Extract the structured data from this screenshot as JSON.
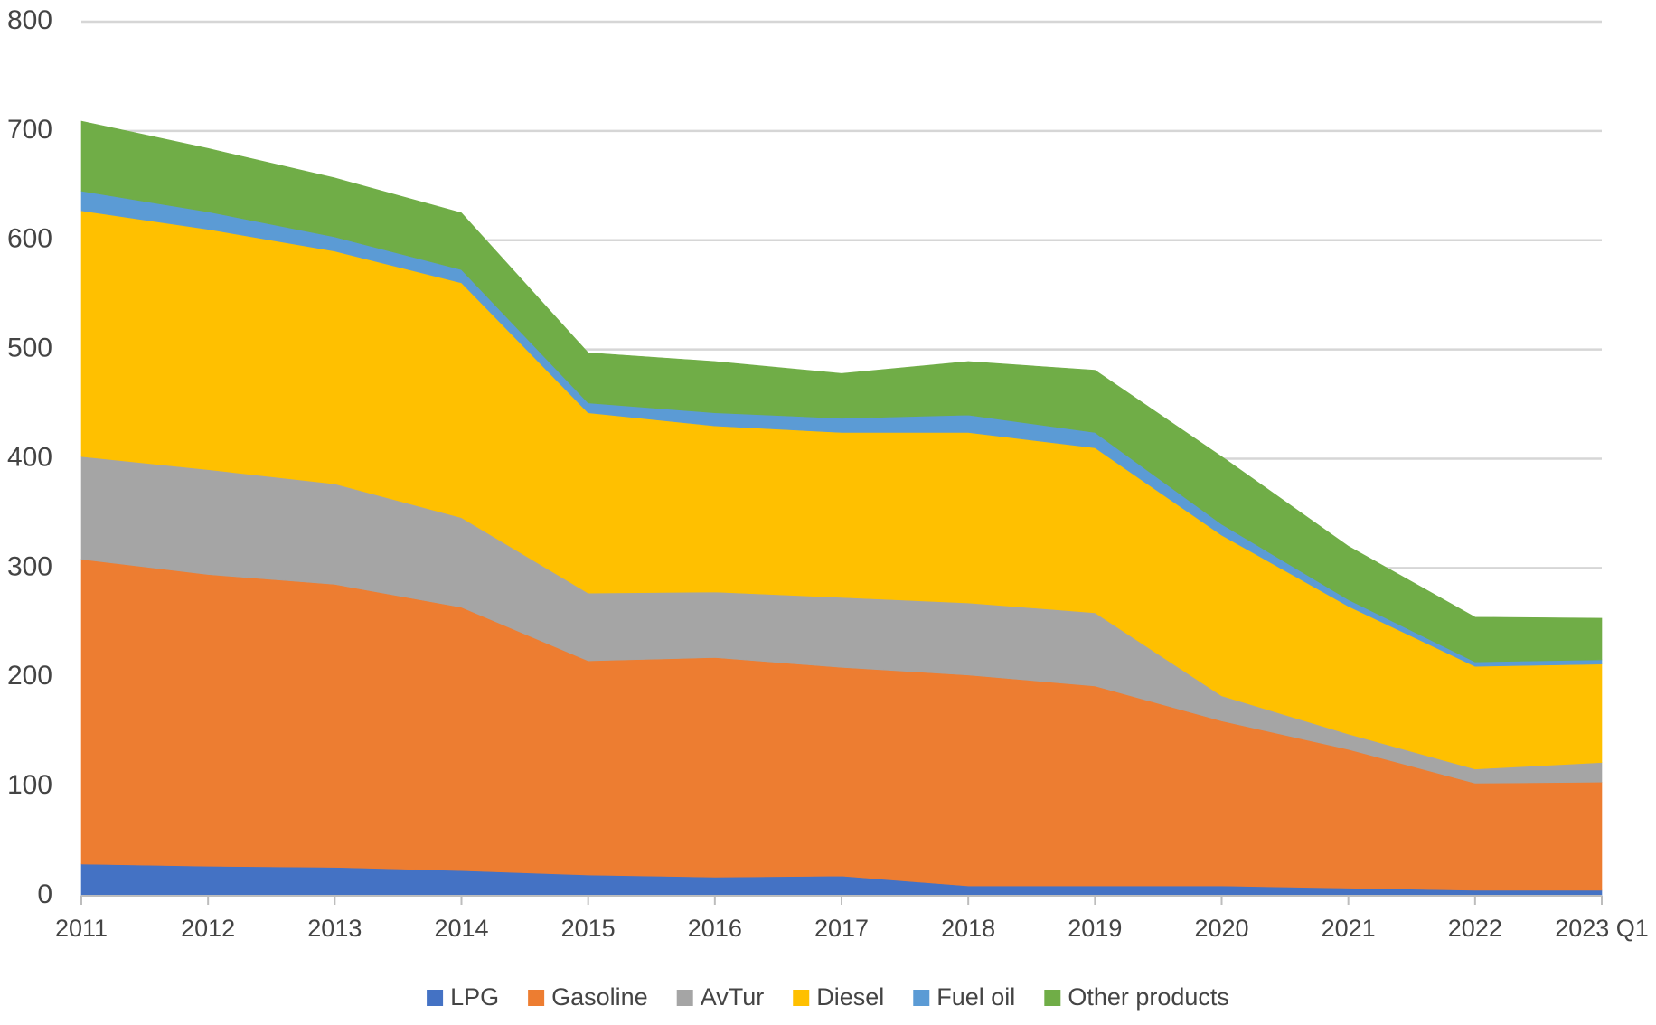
{
  "chart_data": {
    "type": "area",
    "stacked": true,
    "title": "",
    "xlabel": "",
    "ylabel": "",
    "ylim": [
      0,
      800
    ],
    "yticks": [
      0,
      100,
      200,
      300,
      400,
      500,
      600,
      700,
      800
    ],
    "grid": true,
    "legend_position": "bottom",
    "categories": [
      "2011",
      "2012",
      "2013",
      "2014",
      "2015",
      "2016",
      "2017",
      "2018",
      "2019",
      "2020",
      "2021",
      "2022",
      "2023 Q1"
    ],
    "series": [
      {
        "name": "LPG",
        "color": "#4472c4",
        "values": [
          29,
          27,
          26,
          23,
          19,
          17,
          18,
          9,
          9,
          9,
          7,
          5,
          5
        ]
      },
      {
        "name": "Gasoline",
        "color": "#ed7d31",
        "values": [
          279,
          267,
          259,
          241,
          196,
          201,
          191,
          193,
          183,
          151,
          127,
          98,
          99
        ]
      },
      {
        "name": "AvTur",
        "color": "#a5a5a5",
        "values": [
          94,
          96,
          92,
          82,
          62,
          60,
          64,
          66,
          67,
          23,
          14,
          13,
          18
        ]
      },
      {
        "name": "Diesel",
        "color": "#ffc000",
        "values": [
          225,
          220,
          213,
          215,
          165,
          152,
          151,
          156,
          151,
          147,
          117,
          94,
          90
        ]
      },
      {
        "name": "Fuel oil",
        "color": "#5b9bd5",
        "values": [
          18,
          16,
          13,
          12,
          9,
          12,
          13,
          16,
          14,
          10,
          6,
          4,
          4
        ]
      },
      {
        "name": "Other products",
        "color": "#70ad47",
        "values": [
          64,
          58,
          54,
          52,
          46,
          47,
          41,
          49,
          57,
          62,
          49,
          41,
          38
        ]
      }
    ]
  }
}
